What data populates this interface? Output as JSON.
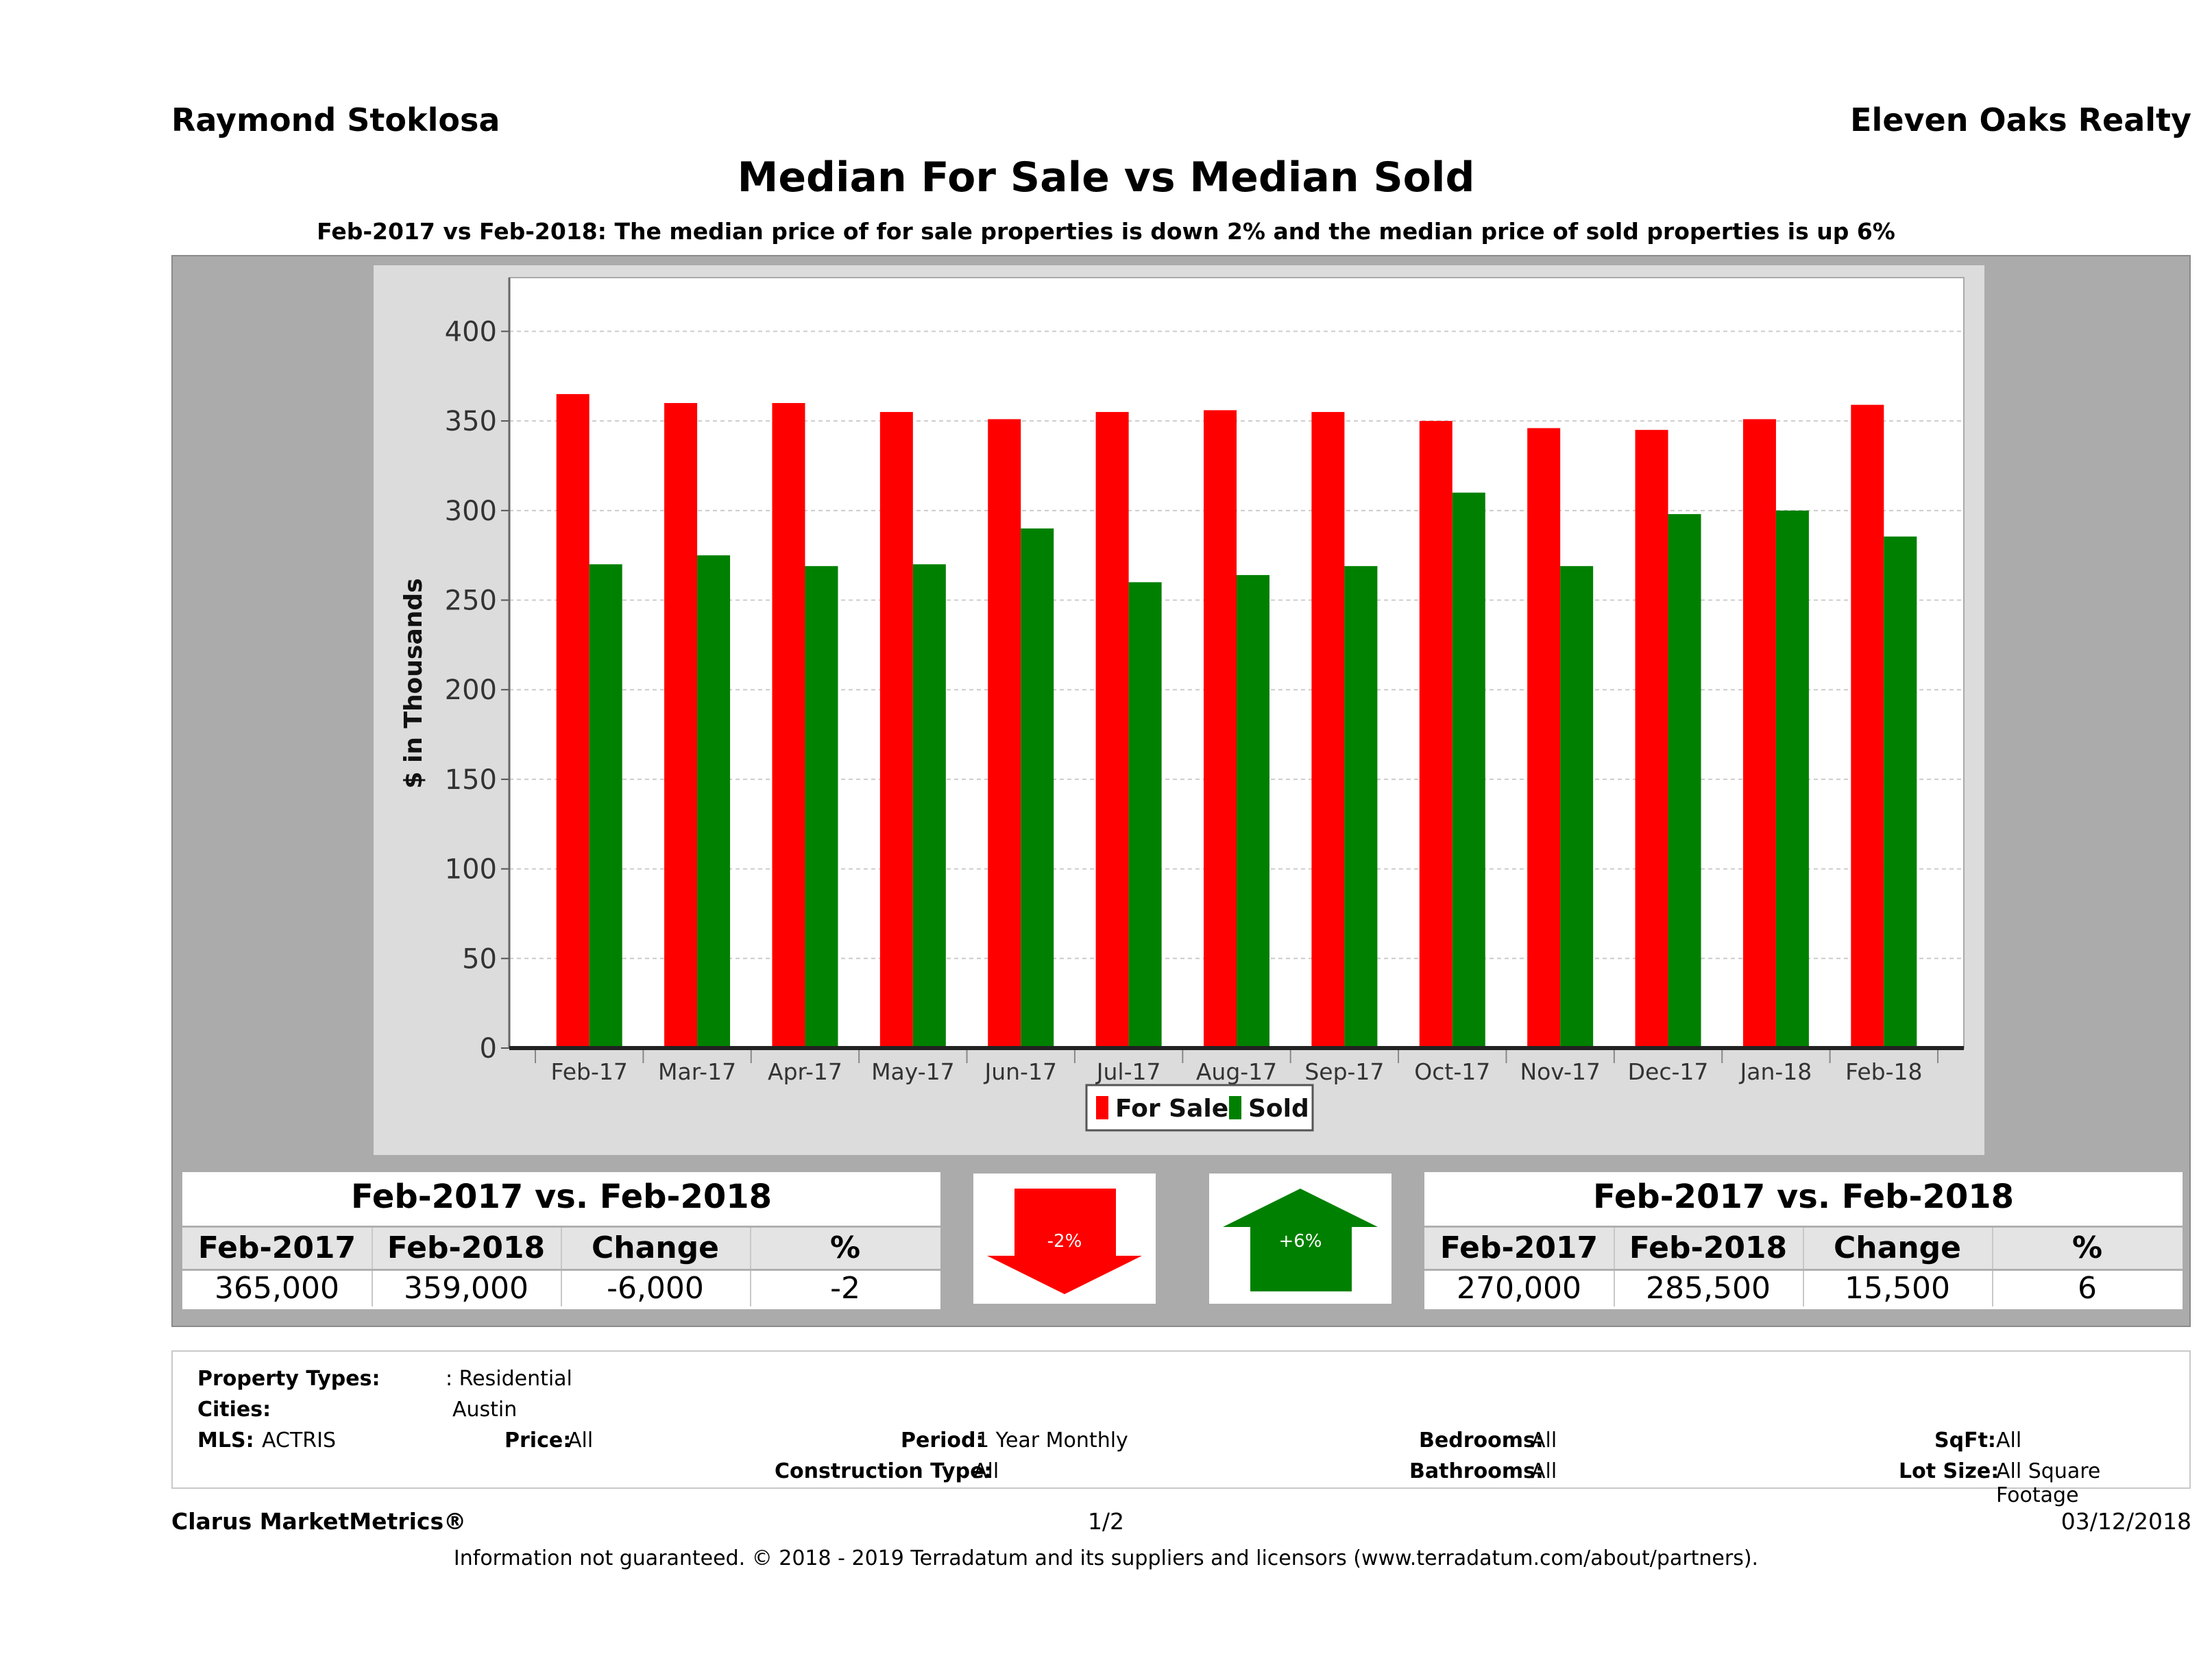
{
  "header": {
    "agent": "Raymond Stoklosa",
    "brokerage": "Eleven Oaks Realty",
    "title": "Median For Sale vs Median Sold",
    "subtitle": "Feb-2017 vs Feb-2018: The median price of for sale properties is down 2% and the median price of sold properties is up 6%"
  },
  "colors": {
    "for_sale": "#ff0000",
    "sold": "#008000",
    "panel": "#ababab",
    "chart_bg": "#dcdcdc"
  },
  "chart_data": {
    "type": "bar",
    "ylabel": "$ in Thousands",
    "ylim": [
      0,
      430
    ],
    "yticks": [
      0,
      50,
      100,
      150,
      200,
      250,
      300,
      350,
      400
    ],
    "grid": true,
    "legend_position": "bottom",
    "categories": [
      "Feb-17",
      "Mar-17",
      "Apr-17",
      "May-17",
      "Jun-17",
      "Jul-17",
      "Aug-17",
      "Sep-17",
      "Oct-17",
      "Nov-17",
      "Dec-17",
      "Jan-18",
      "Feb-18"
    ],
    "series": [
      {
        "name": "For Sale",
        "color": "#ff0000",
        "values": [
          365,
          360,
          360,
          355,
          351,
          355,
          356,
          355,
          350,
          346,
          345,
          351,
          359
        ]
      },
      {
        "name": "Sold",
        "color": "#008000",
        "values": [
          270,
          275,
          269,
          270,
          290,
          260,
          264,
          269,
          310,
          269,
          298,
          300,
          285.5
        ]
      }
    ]
  },
  "forsale_table": {
    "title": "Feb-2017 vs. Feb-2018",
    "headers": [
      "Feb-2017",
      "Feb-2018",
      "Change",
      "%"
    ],
    "values": [
      "365,000",
      "359,000",
      "-6,000",
      "-2"
    ]
  },
  "sold_table": {
    "title": "Feb-2017 vs. Feb-2018",
    "headers": [
      "Feb-2017",
      "Feb-2018",
      "Change",
      "%"
    ],
    "values": [
      "270,000",
      "285,500",
      "15,500",
      "6"
    ]
  },
  "arrows": {
    "down": {
      "label": "-2%",
      "color": "#ff0000"
    },
    "up": {
      "label": "+6%",
      "color": "#008000"
    }
  },
  "filters": {
    "property_types_label": "Property Types:",
    "property_types": ": Residential",
    "cities_label": "Cities:",
    "cities": "Austin",
    "mls_label": "MLS:",
    "mls": "ACTRIS",
    "price_label": "Price:",
    "price": "All",
    "period_label": "Period:",
    "period": "1 Year Monthly",
    "construction_label": "Construction Type:",
    "construction": "All",
    "bedrooms_label": "Bedrooms:",
    "bedrooms": "All",
    "bathrooms_label": "Bathrooms:",
    "bathrooms": "All",
    "sqft_label": "SqFt:",
    "sqft": "All",
    "lot_label": "Lot Size:",
    "lot": "All Square Footage"
  },
  "footer": {
    "brand": "Clarus MarketMetrics®",
    "page": "1/2",
    "date": "03/12/2018",
    "disclaimer": "Information not guaranteed. © 2018 - 2019 Terradatum and its suppliers and licensors (www.terradatum.com/about/partners)."
  }
}
